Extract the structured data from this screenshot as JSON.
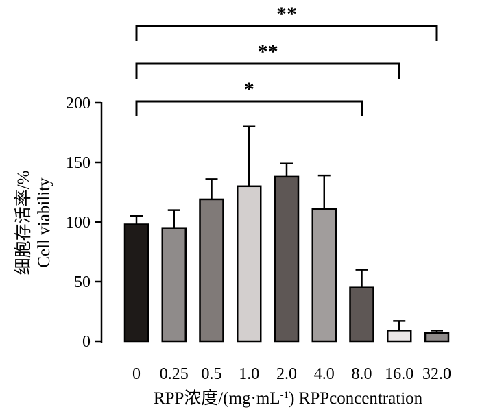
{
  "chart_data": {
    "type": "bar",
    "categories": [
      "0",
      "0.25",
      "0.5",
      "1.0",
      "2.0",
      "4.0",
      "8.0",
      "16.0",
      "32.0"
    ],
    "values": [
      98,
      95,
      119,
      130,
      138,
      111,
      45,
      9,
      7
    ],
    "errors": [
      7,
      15,
      17,
      50,
      11,
      28,
      15,
      8,
      2
    ],
    "bar_colors": [
      "#1e1a18",
      "#8f8b8a",
      "#807a78",
      "#d3cfce",
      "#5e5755",
      "#a19d9c",
      "#5e5755",
      "#ebe6e6",
      "#8f8b8a"
    ],
    "xlabel": {
      "main": "RPP浓度/(mg·mL",
      "sup": "-1",
      "tail": ") RPPconcentration"
    },
    "ylabel": {
      "line1": "细胞存活率/%",
      "line2": "Cell viability"
    },
    "yticks": [
      "0",
      "50",
      "100",
      "150",
      "200"
    ],
    "ylim": [
      0,
      200
    ],
    "grid": false,
    "significance": [
      {
        "from": 0,
        "to": 6,
        "label": "*"
      },
      {
        "from": 0,
        "to": 7,
        "label": "**"
      },
      {
        "from": 0,
        "to": 8,
        "label": "**"
      }
    ]
  }
}
